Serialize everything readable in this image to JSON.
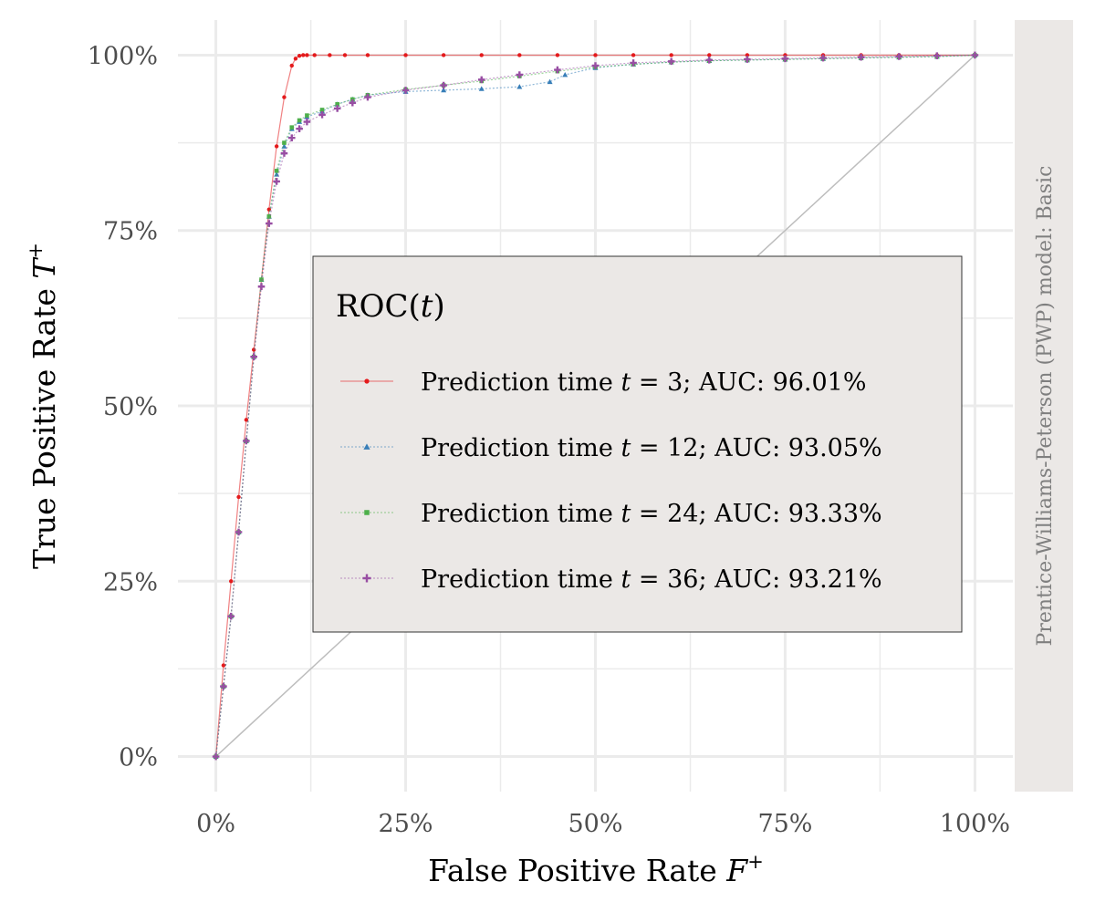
{
  "chart_data": {
    "type": "line",
    "xlabel": "False Positive Rate",
    "xlabel_symbol": "F",
    "xlabel_sup": "+",
    "ylabel": "True Positive Rate",
    "ylabel_symbol": "T",
    "ylabel_sup": "+",
    "xlim": [
      -0.05,
      1.05
    ],
    "ylim": [
      -0.05,
      1.05
    ],
    "x_ticks": [
      0,
      0.25,
      0.5,
      0.75,
      1
    ],
    "x_tick_labels": [
      "0%",
      "25%",
      "50%",
      "75%",
      "100%"
    ],
    "y_ticks": [
      0,
      0.25,
      0.5,
      0.75,
      1
    ],
    "y_tick_labels": [
      "0%",
      "25%",
      "50%",
      "75%",
      "100%"
    ],
    "grid": true,
    "facet_label": "Prentice-Williams-Peterson (PWP) model: Basic",
    "legend": {
      "title_prefix": "ROC",
      "title_var": "t",
      "placement": "center-right",
      "item_prefix": "Prediction time",
      "item_var": "t"
    },
    "reference_line": {
      "x": [
        0,
        1
      ],
      "y": [
        0,
        1
      ],
      "color": "#bdbdbd"
    },
    "series": [
      {
        "name": "= 3; AUC: 96.01%",
        "color": "#e41a1c",
        "marker": "circle",
        "x": [
          0,
          0.01,
          0.02,
          0.03,
          0.04,
          0.05,
          0.06,
          0.07,
          0.08,
          0.09,
          0.1,
          0.105,
          0.11,
          0.115,
          0.12,
          0.13,
          0.15,
          0.17,
          0.2,
          0.25,
          0.3,
          0.35,
          0.4,
          0.45,
          0.5,
          0.55,
          0.6,
          0.65,
          0.7,
          0.75,
          0.8,
          0.85,
          0.9,
          0.95,
          1
        ],
        "y": [
          0,
          0.13,
          0.25,
          0.37,
          0.48,
          0.58,
          0.68,
          0.78,
          0.87,
          0.94,
          0.985,
          0.995,
          0.999,
          1,
          1,
          1,
          1,
          1,
          1,
          1,
          1,
          1,
          1,
          1,
          1,
          1,
          1,
          1,
          1,
          1,
          1,
          1,
          1,
          1,
          1
        ]
      },
      {
        "name": "= 12; AUC: 93.05%",
        "color": "#377eb8",
        "marker": "triangle",
        "x": [
          0,
          0.01,
          0.02,
          0.03,
          0.04,
          0.05,
          0.06,
          0.07,
          0.08,
          0.09,
          0.1,
          0.11,
          0.12,
          0.14,
          0.16,
          0.18,
          0.2,
          0.25,
          0.3,
          0.35,
          0.4,
          0.44,
          0.46,
          0.5,
          0.55,
          0.6,
          0.65,
          0.7,
          0.75,
          0.8,
          0.85,
          0.9,
          0.95,
          1
        ],
        "y": [
          0,
          0.1,
          0.2,
          0.32,
          0.45,
          0.57,
          0.68,
          0.77,
          0.83,
          0.87,
          0.895,
          0.905,
          0.912,
          0.92,
          0.93,
          0.937,
          0.943,
          0.948,
          0.95,
          0.952,
          0.955,
          0.962,
          0.972,
          0.982,
          0.987,
          0.99,
          0.992,
          0.993,
          0.994,
          0.995,
          0.996,
          0.997,
          0.998,
          1
        ]
      },
      {
        "name": "= 24; AUC: 93.33%",
        "color": "#4daf4a",
        "marker": "square",
        "x": [
          0,
          0.01,
          0.02,
          0.03,
          0.04,
          0.05,
          0.06,
          0.07,
          0.08,
          0.09,
          0.1,
          0.11,
          0.12,
          0.14,
          0.16,
          0.18,
          0.2,
          0.25,
          0.3,
          0.35,
          0.4,
          0.45,
          0.5,
          0.55,
          0.6,
          0.65,
          0.7,
          0.75,
          0.8,
          0.85,
          0.9,
          0.95,
          1
        ],
        "y": [
          0,
          0.1,
          0.2,
          0.32,
          0.45,
          0.57,
          0.68,
          0.77,
          0.835,
          0.875,
          0.897,
          0.907,
          0.914,
          0.922,
          0.93,
          0.937,
          0.943,
          0.951,
          0.957,
          0.963,
          0.97,
          0.977,
          0.983,
          0.987,
          0.99,
          0.992,
          0.993,
          0.994,
          0.995,
          0.996,
          0.997,
          0.998,
          1
        ]
      },
      {
        "name": "= 36; AUC: 93.21%",
        "color": "#984ea3",
        "marker": "plus",
        "x": [
          0,
          0.01,
          0.02,
          0.03,
          0.04,
          0.05,
          0.06,
          0.07,
          0.08,
          0.09,
          0.1,
          0.11,
          0.12,
          0.14,
          0.16,
          0.18,
          0.2,
          0.25,
          0.3,
          0.35,
          0.4,
          0.45,
          0.5,
          0.55,
          0.6,
          0.65,
          0.7,
          0.75,
          0.8,
          0.85,
          0.9,
          0.95,
          1
        ],
        "y": [
          0,
          0.1,
          0.2,
          0.32,
          0.45,
          0.57,
          0.67,
          0.76,
          0.82,
          0.86,
          0.882,
          0.895,
          0.905,
          0.915,
          0.924,
          0.932,
          0.94,
          0.95,
          0.957,
          0.965,
          0.972,
          0.979,
          0.985,
          0.989,
          0.991,
          0.993,
          0.994,
          0.995,
          0.996,
          0.997,
          0.998,
          0.999,
          1
        ]
      }
    ]
  }
}
